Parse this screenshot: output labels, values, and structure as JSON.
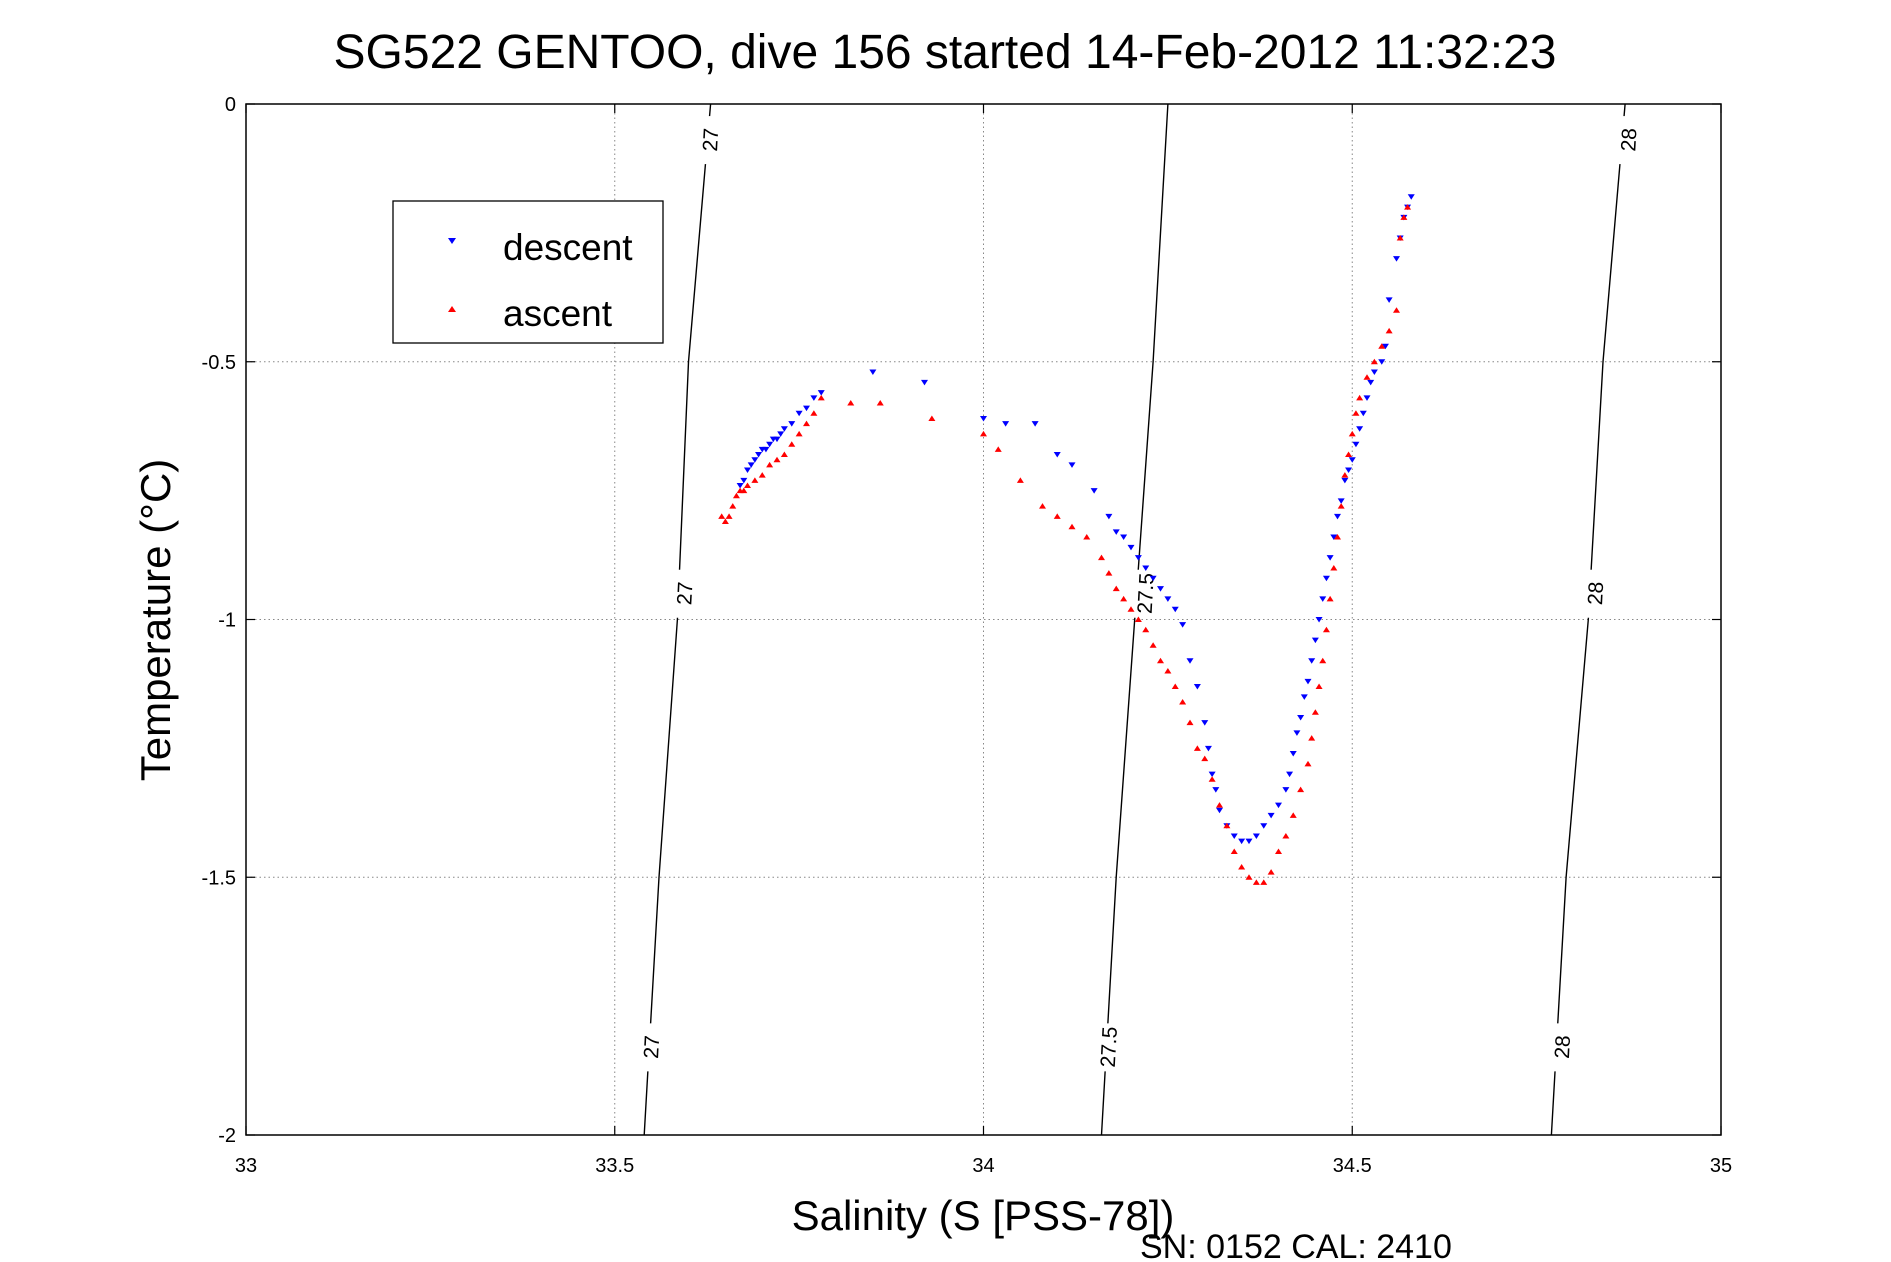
{
  "chart_data": {
    "type": "scatter",
    "title": "SG522 GENTOO, dive 156 started 14-Feb-2012 11:32:23",
    "xlabel": "Salinity (S [PSS-78])",
    "ylabel": "Temperature (°C)",
    "xlim": [
      33,
      35
    ],
    "ylim": [
      -2,
      0
    ],
    "x_ticks": [
      "33",
      "33.5",
      "34",
      "34.5",
      "35"
    ],
    "y_ticks": [
      "0",
      "-0.5",
      "-1",
      "-1.5",
      "-2"
    ],
    "grid": true,
    "legend_position": "top-left",
    "footer": "SN: 0152  CAL: 2410",
    "colors": {
      "descent": "#0000ff",
      "ascent": "#ff0000",
      "contour": "#000000"
    },
    "density_contours": [
      {
        "label": "27",
        "points": [
          [
            33.54,
            -2.0
          ],
          [
            33.56,
            -1.5
          ],
          [
            33.585,
            -1.0
          ],
          [
            33.6,
            -0.5
          ],
          [
            33.63,
            0.0
          ]
        ],
        "label_positions": [
          [
            33.55,
            -1.83
          ],
          [
            33.595,
            -0.95
          ],
          [
            33.63,
            -0.07
          ]
        ]
      },
      {
        "label": "27.5",
        "points": [
          [
            34.16,
            -2.0
          ],
          [
            34.18,
            -1.5
          ],
          [
            34.205,
            -1.0
          ],
          [
            34.23,
            -0.5
          ],
          [
            34.25,
            0.0
          ]
        ],
        "label_positions": [
          [
            34.17,
            -1.83
          ],
          [
            34.22,
            -0.95
          ]
        ]
      },
      {
        "label": "28",
        "points": [
          [
            34.77,
            -2.0
          ],
          [
            34.79,
            -1.5
          ],
          [
            34.82,
            -1.0
          ],
          [
            34.84,
            -0.5
          ],
          [
            34.87,
            0.0
          ]
        ],
        "label_positions": [
          [
            34.785,
            -1.83
          ],
          [
            34.83,
            -0.95
          ],
          [
            34.875,
            -0.07
          ]
        ]
      }
    ],
    "series": [
      {
        "name": "descent",
        "marker": "triangle-down",
        "x": [
          33.67,
          33.675,
          33.68,
          33.685,
          33.69,
          33.695,
          33.7,
          33.705,
          33.71,
          33.715,
          33.72,
          33.725,
          33.73,
          33.74,
          33.75,
          33.76,
          33.77,
          33.78,
          33.85,
          33.92,
          34.0,
          34.03,
          34.07,
          34.1,
          34.12,
          34.15,
          34.17,
          34.18,
          34.19,
          34.2,
          34.21,
          34.22,
          34.23,
          34.24,
          34.25,
          34.26,
          34.27,
          34.28,
          34.29,
          34.3,
          34.305,
          34.31,
          34.315,
          34.32,
          34.33,
          34.34,
          34.35,
          34.36,
          34.37,
          34.38,
          34.39,
          34.4,
          34.41,
          34.415,
          34.42,
          34.425,
          34.43,
          34.435,
          34.44,
          34.445,
          34.45,
          34.455,
          34.46,
          34.465,
          34.47,
          34.475,
          34.48,
          34.485,
          34.49,
          34.495,
          34.5,
          34.505,
          34.51,
          34.515,
          34.52,
          34.525,
          34.53,
          34.54,
          34.545,
          34.55,
          34.56,
          34.565,
          34.57,
          34.575,
          34.58
        ],
        "y": [
          -0.74,
          -0.73,
          -0.71,
          -0.7,
          -0.69,
          -0.68,
          -0.67,
          -0.67,
          -0.66,
          -0.65,
          -0.65,
          -0.64,
          -0.63,
          -0.62,
          -0.6,
          -0.59,
          -0.57,
          -0.56,
          -0.52,
          -0.54,
          -0.61,
          -0.62,
          -0.62,
          -0.68,
          -0.7,
          -0.75,
          -0.8,
          -0.83,
          -0.84,
          -0.86,
          -0.88,
          -0.9,
          -0.92,
          -0.94,
          -0.96,
          -0.98,
          -1.01,
          -1.08,
          -1.13,
          -1.2,
          -1.25,
          -1.3,
          -1.33,
          -1.37,
          -1.4,
          -1.42,
          -1.43,
          -1.43,
          -1.42,
          -1.4,
          -1.38,
          -1.36,
          -1.33,
          -1.3,
          -1.26,
          -1.22,
          -1.19,
          -1.15,
          -1.12,
          -1.08,
          -1.04,
          -1.0,
          -0.96,
          -0.92,
          -0.88,
          -0.84,
          -0.8,
          -0.77,
          -0.73,
          -0.71,
          -0.69,
          -0.66,
          -0.63,
          -0.6,
          -0.57,
          -0.54,
          -0.52,
          -0.5,
          -0.47,
          -0.38,
          -0.3,
          -0.26,
          -0.22,
          -0.2,
          -0.18
        ]
      },
      {
        "name": "ascent",
        "marker": "triangle-up",
        "x": [
          33.645,
          33.65,
          33.655,
          33.66,
          33.665,
          33.67,
          33.675,
          33.68,
          33.69,
          33.7,
          33.71,
          33.72,
          33.73,
          33.74,
          33.75,
          33.76,
          33.77,
          33.78,
          33.82,
          33.86,
          33.93,
          34.0,
          34.02,
          34.05,
          34.08,
          34.1,
          34.12,
          34.14,
          34.16,
          34.17,
          34.18,
          34.19,
          34.2,
          34.21,
          34.22,
          34.23,
          34.24,
          34.25,
          34.26,
          34.27,
          34.28,
          34.29,
          34.3,
          34.31,
          34.32,
          34.33,
          34.34,
          34.35,
          34.36,
          34.37,
          34.38,
          34.39,
          34.4,
          34.41,
          34.42,
          34.43,
          34.44,
          34.445,
          34.45,
          34.455,
          34.46,
          34.465,
          34.47,
          34.475,
          34.48,
          34.485,
          34.49,
          34.495,
          34.5,
          34.505,
          34.51,
          34.52,
          34.53,
          34.54,
          34.55,
          34.56,
          34.565,
          34.57,
          34.575
        ],
        "y": [
          -0.8,
          -0.81,
          -0.8,
          -0.78,
          -0.76,
          -0.75,
          -0.75,
          -0.74,
          -0.73,
          -0.72,
          -0.7,
          -0.69,
          -0.68,
          -0.66,
          -0.64,
          -0.62,
          -0.6,
          -0.57,
          -0.58,
          -0.58,
          -0.61,
          -0.64,
          -0.67,
          -0.73,
          -0.78,
          -0.8,
          -0.82,
          -0.84,
          -0.88,
          -0.91,
          -0.94,
          -0.96,
          -0.98,
          -1.0,
          -1.02,
          -1.05,
          -1.08,
          -1.1,
          -1.13,
          -1.16,
          -1.2,
          -1.25,
          -1.27,
          -1.31,
          -1.36,
          -1.4,
          -1.45,
          -1.48,
          -1.5,
          -1.51,
          -1.51,
          -1.49,
          -1.45,
          -1.42,
          -1.38,
          -1.33,
          -1.28,
          -1.23,
          -1.18,
          -1.13,
          -1.08,
          -1.02,
          -0.96,
          -0.9,
          -0.84,
          -0.78,
          -0.72,
          -0.68,
          -0.64,
          -0.6,
          -0.57,
          -0.53,
          -0.5,
          -0.47,
          -0.44,
          -0.4,
          -0.26,
          -0.22,
          -0.2
        ]
      }
    ]
  }
}
